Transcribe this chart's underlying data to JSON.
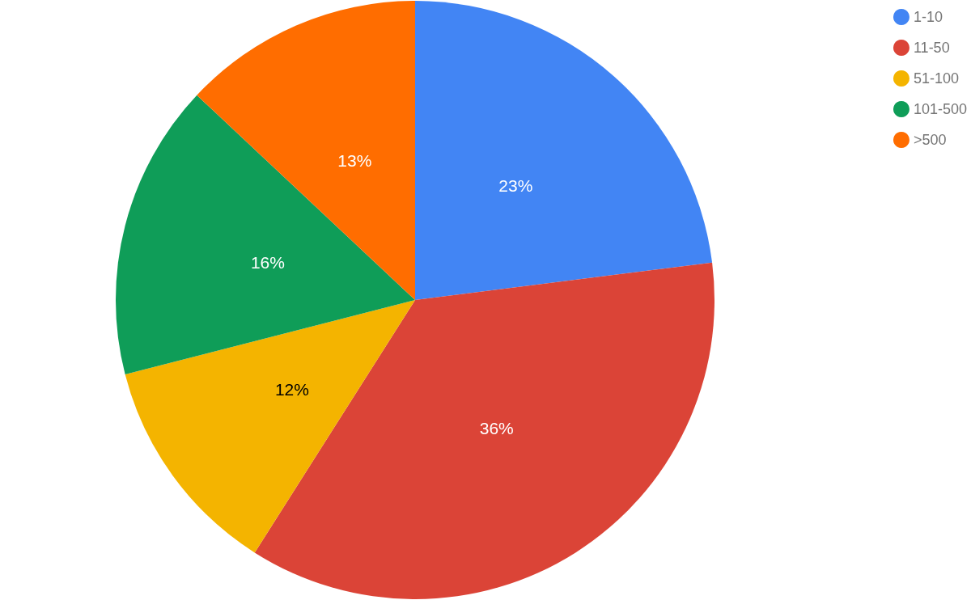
{
  "chart_data": {
    "type": "pie",
    "categories": [
      "1-10",
      "11-50",
      "51-100",
      "101-500",
      ">500"
    ],
    "values": [
      23,
      36,
      12,
      16,
      13
    ],
    "colors": [
      "#4285f4",
      "#db4437",
      "#f4b400",
      "#0f9d58",
      "#ff6d00"
    ],
    "value_labels": [
      "23%",
      "36%",
      "12%",
      "16%",
      "13%"
    ],
    "legend": "top right"
  }
}
